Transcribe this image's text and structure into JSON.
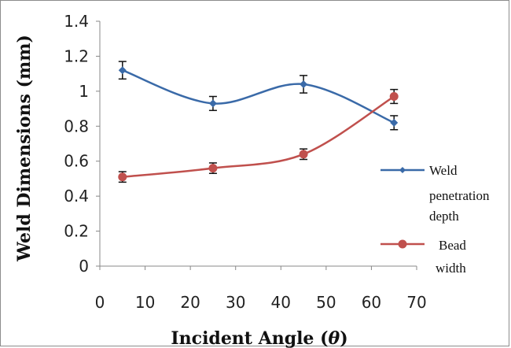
{
  "chart_data": {
    "type": "line",
    "xlabel": "Incident Angle (θ)",
    "xlabel_parts": [
      "Incident Angle (",
      "θ",
      ")"
    ],
    "ylabel": "Weld Dimensions (mm)",
    "xlim": [
      0,
      70
    ],
    "ylim": [
      0,
      1.4
    ],
    "x_ticks": [
      "0",
      "10",
      "20",
      "30",
      "40",
      "50",
      "60",
      "70"
    ],
    "y_ticks": [
      "0",
      "0.2",
      "0.4",
      "0.6",
      "0.8",
      "1",
      "1.2",
      "1.4"
    ],
    "grid": false,
    "legend_position": "right",
    "series": [
      {
        "name": "Weld penetration depth",
        "legend_lines": [
          "Weld",
          "penetration",
          "depth"
        ],
        "color": "#3a6aa8",
        "marker": "diamond",
        "x": [
          5,
          25,
          45,
          65
        ],
        "y": [
          1.12,
          0.93,
          1.04,
          0.82
        ],
        "error": [
          0.05,
          0.04,
          0.05,
          0.04
        ]
      },
      {
        "name": "Bead width",
        "legend_lines": [
          "Bead",
          "width"
        ],
        "color": "#c0504d",
        "marker": "circle",
        "x": [
          5,
          25,
          45,
          65
        ],
        "y": [
          0.51,
          0.56,
          0.64,
          0.97
        ],
        "error": [
          0.03,
          0.03,
          0.03,
          0.04
        ]
      }
    ]
  }
}
